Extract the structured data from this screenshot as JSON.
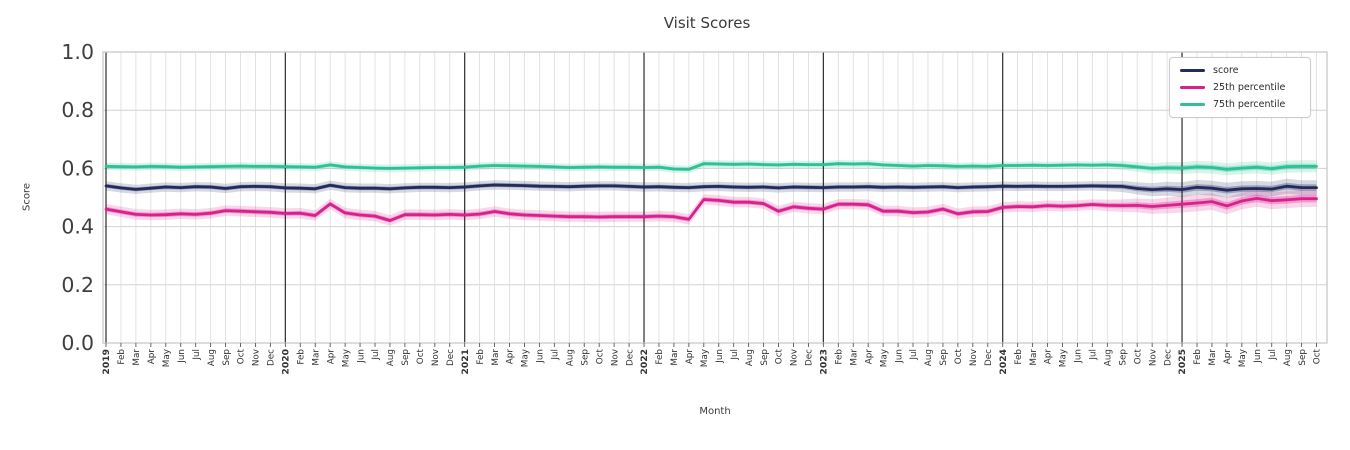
{
  "chart_data": {
    "type": "line",
    "title": "Visit Scores",
    "xlabel": "Month",
    "ylabel": "Score",
    "ylim": [
      0.0,
      1.0
    ],
    "yticks": [
      "0.0",
      "0.2",
      "0.4",
      "0.6",
      "0.8",
      "1.0"
    ],
    "grid": true,
    "legend_position": "upper right",
    "x_tick_labels": [
      "2019",
      "Feb",
      "Mar",
      "Apr",
      "May",
      "Jun",
      "Jul",
      "Aug",
      "Sep",
      "Oct",
      "Nov",
      "Dec",
      "2020",
      "Feb",
      "Mar",
      "Apr",
      "May",
      "Jun",
      "Jul",
      "Aug",
      "Sep",
      "Oct",
      "Nov",
      "Dec",
      "2021",
      "Feb",
      "Mar",
      "Apr",
      "May",
      "Jun",
      "Jul",
      "Aug",
      "Sep",
      "Oct",
      "Nov",
      "Dec",
      "2022",
      "Feb",
      "Mar",
      "Apr",
      "May",
      "Jun",
      "Jul",
      "Aug",
      "Sep",
      "Oct",
      "Nov",
      "Dec",
      "2023",
      "Feb",
      "Mar",
      "Apr",
      "May",
      "Jun",
      "Jul",
      "Aug",
      "Sep",
      "Oct",
      "Nov",
      "Dec",
      "2024",
      "Feb",
      "Mar",
      "Apr",
      "May",
      "Jun",
      "Jul",
      "Aug",
      "Sep",
      "Oct",
      "Nov",
      "Dec",
      "2025",
      "Feb",
      "Mar",
      "Apr",
      "May",
      "Jun",
      "Jul",
      "Aug",
      "Sep",
      "Oct"
    ],
    "year_tick_indices": [
      0,
      12,
      24,
      36,
      48,
      60,
      72
    ],
    "series": [
      {
        "name": "score",
        "color": "#232a5c",
        "band_inner_half_width": 0.007,
        "band_outer_half_width": 0.016,
        "values": [
          0.54,
          0.533,
          0.528,
          0.532,
          0.536,
          0.534,
          0.537,
          0.536,
          0.531,
          0.537,
          0.538,
          0.537,
          0.533,
          0.532,
          0.53,
          0.542,
          0.534,
          0.532,
          0.532,
          0.53,
          0.533,
          0.535,
          0.535,
          0.534,
          0.536,
          0.54,
          0.543,
          0.542,
          0.541,
          0.539,
          0.538,
          0.537,
          0.539,
          0.54,
          0.54,
          0.538,
          0.536,
          0.537,
          0.535,
          0.534,
          0.537,
          0.538,
          0.536,
          0.535,
          0.536,
          0.533,
          0.536,
          0.535,
          0.534,
          0.536,
          0.536,
          0.537,
          0.535,
          0.536,
          0.535,
          0.536,
          0.537,
          0.534,
          0.536,
          0.537,
          0.539,
          0.538,
          0.539,
          0.538,
          0.538,
          0.539,
          0.54,
          0.539,
          0.538,
          0.531,
          0.527,
          0.53,
          0.527,
          0.535,
          0.532,
          0.525,
          0.53,
          0.531,
          0.529,
          0.539,
          0.534,
          0.534
        ]
      },
      {
        "name": "25th percentile",
        "color": "#d9218e",
        "band_inner_half_width": 0.008,
        "band_outer_half_width": 0.018,
        "values": [
          0.46,
          0.451,
          0.442,
          0.44,
          0.441,
          0.444,
          0.442,
          0.446,
          0.455,
          0.453,
          0.451,
          0.449,
          0.445,
          0.446,
          0.438,
          0.478,
          0.447,
          0.44,
          0.436,
          0.421,
          0.441,
          0.441,
          0.44,
          0.442,
          0.44,
          0.443,
          0.452,
          0.444,
          0.44,
          0.438,
          0.436,
          0.434,
          0.434,
          0.433,
          0.434,
          0.434,
          0.434,
          0.436,
          0.434,
          0.425,
          0.493,
          0.49,
          0.484,
          0.484,
          0.479,
          0.453,
          0.468,
          0.463,
          0.46,
          0.477,
          0.477,
          0.475,
          0.453,
          0.453,
          0.448,
          0.45,
          0.46,
          0.444,
          0.451,
          0.452,
          0.466,
          0.469,
          0.468,
          0.472,
          0.47,
          0.472,
          0.476,
          0.473,
          0.472,
          0.473,
          0.469,
          0.473,
          0.477,
          0.481,
          0.486,
          0.471,
          0.488,
          0.497,
          0.489,
          0.492,
          0.496,
          0.496
        ]
      },
      {
        "name": "75th percentile",
        "color": "#2cc295",
        "band_inner_half_width": 0.006,
        "band_outer_half_width": 0.013,
        "values": [
          0.607,
          0.606,
          0.605,
          0.607,
          0.606,
          0.604,
          0.605,
          0.606,
          0.607,
          0.608,
          0.607,
          0.607,
          0.606,
          0.605,
          0.604,
          0.612,
          0.605,
          0.603,
          0.601,
          0.6,
          0.601,
          0.602,
          0.603,
          0.603,
          0.604,
          0.608,
          0.61,
          0.609,
          0.608,
          0.607,
          0.605,
          0.603,
          0.604,
          0.605,
          0.604,
          0.604,
          0.603,
          0.604,
          0.598,
          0.597,
          0.616,
          0.615,
          0.614,
          0.615,
          0.613,
          0.612,
          0.614,
          0.613,
          0.613,
          0.616,
          0.615,
          0.616,
          0.612,
          0.61,
          0.608,
          0.61,
          0.609,
          0.607,
          0.608,
          0.607,
          0.61,
          0.61,
          0.611,
          0.61,
          0.611,
          0.612,
          0.611,
          0.612,
          0.61,
          0.605,
          0.6,
          0.602,
          0.601,
          0.605,
          0.603,
          0.597,
          0.601,
          0.604,
          0.599,
          0.606,
          0.607,
          0.607
        ]
      }
    ],
    "band_widen": {
      "from_index": 66,
      "full_at_index": 72,
      "factor": 1.6
    }
  },
  "colors": {
    "background": "#ffffff",
    "grid_minor": "#dcdcdc",
    "grid_major": "#d3d3d3",
    "year_line": "#2b2b2b",
    "spine": "#c9c9c9",
    "title_text": "#3a3a3a",
    "tick_text": "#333333",
    "ytick_text": "#3f3f3f",
    "legend_border": "#cccccc"
  }
}
